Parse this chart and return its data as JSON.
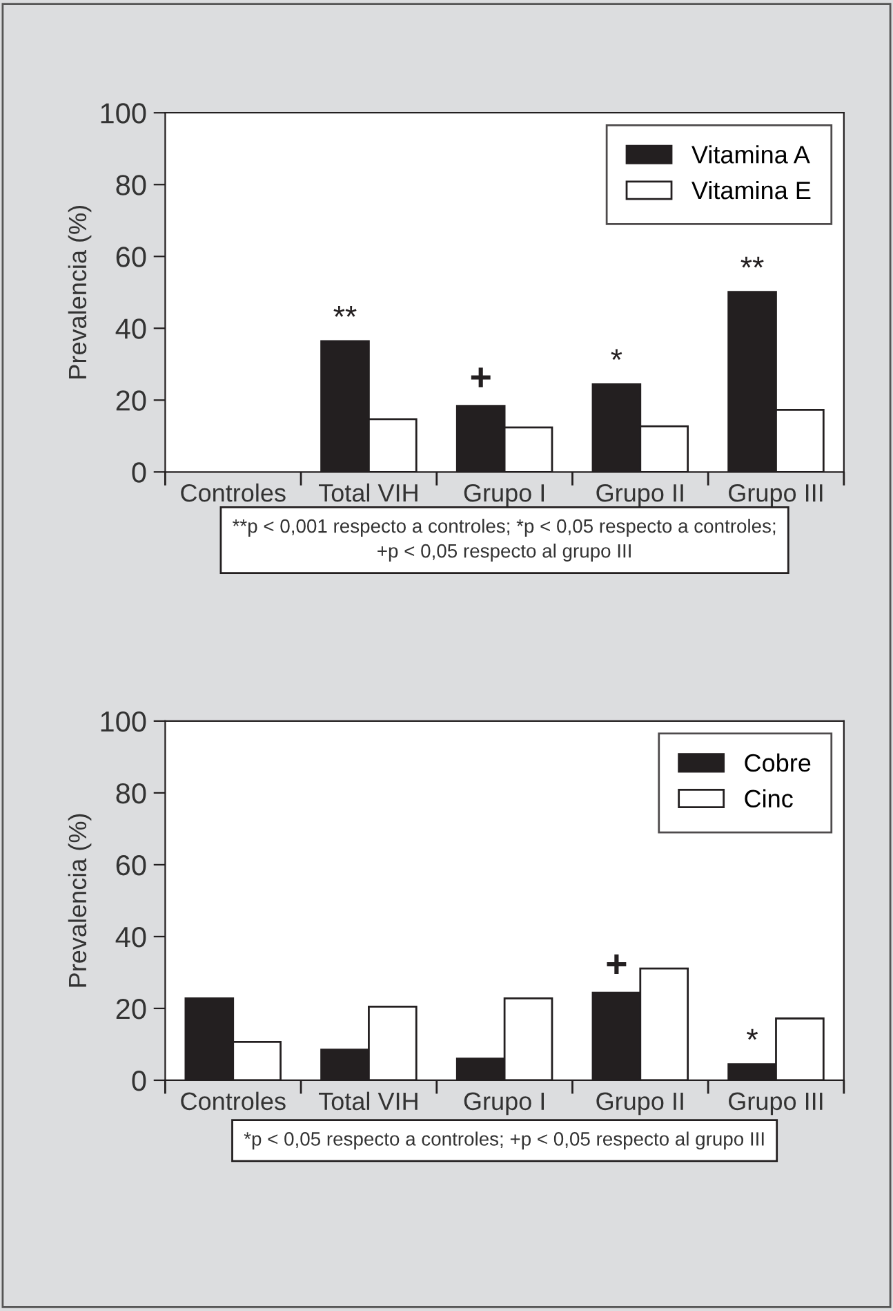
{
  "chart_data": [
    {
      "type": "bar",
      "ylabel": "Prevalencia (%)",
      "categories": [
        "Controles",
        "Total VIH",
        "Grupo I",
        "Grupo II",
        "Grupo III"
      ],
      "series": [
        {
          "name": "Vitamina A",
          "color": "#231f20",
          "values": [
            0,
            36.4,
            18.4,
            24.4,
            50.1
          ]
        },
        {
          "name": "Vitamina E",
          "color": "#ffffff",
          "values": [
            0,
            14.7,
            12.4,
            12.7,
            17.3
          ]
        }
      ],
      "ylim": [
        0,
        100
      ],
      "yticks": [
        0,
        20,
        40,
        60,
        80,
        100
      ],
      "legend": "top right",
      "grid": false,
      "annotations": [
        {
          "text": "**",
          "x": "Total VIH",
          "y": 36.4
        },
        {
          "text": "+",
          "x": "Grupo I",
          "y": 18.4
        },
        {
          "text": "*",
          "x": "Grupo II",
          "y": 24.4
        },
        {
          "text": "**",
          "x": "Grupo III",
          "y": 50.1
        },
        "**p < 0,001 respecto a controles; *p < 0,05 respecto a controles;\n+p < 0,05 respecto al grupo III"
      ]
    },
    {
      "type": "bar",
      "ylabel": "Prevalencia (%)",
      "categories": [
        "Controles",
        "Total VIH",
        "Grupo I",
        "Grupo II",
        "Grupo III"
      ],
      "series": [
        {
          "name": "Cobre",
          "color": "#231f20",
          "values": [
            22.8,
            8.5,
            6,
            24.4,
            4.5
          ]
        },
        {
          "name": "Cinc",
          "color": "#ffffff",
          "values": [
            10.7,
            20.5,
            22.8,
            31.1,
            17.2
          ]
        }
      ],
      "ylim": [
        0,
        100
      ],
      "yticks": [
        0,
        20,
        40,
        60,
        80,
        100
      ],
      "legend": "top right",
      "grid": false,
      "annotations": [
        {
          "text": "+",
          "x": "Grupo II",
          "y": 24.4
        },
        {
          "text": "*",
          "x": "Grupo III",
          "y": 4.5
        },
        "*p < 0,05 respecto a controles; +p < 0,05 respecto al grupo III"
      ]
    }
  ]
}
